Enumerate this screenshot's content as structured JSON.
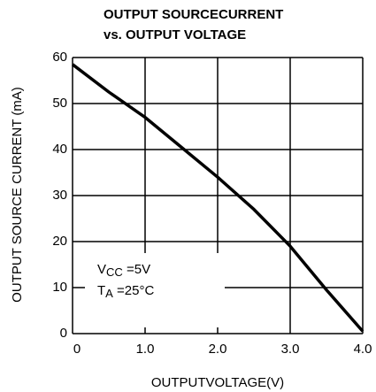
{
  "chart_data": {
    "type": "line",
    "title": [
      "OUTPUT SOURCECURRENT",
      "vs. OUTPUT VOLTAGE"
    ],
    "x_label": "OUTPUTVOLTAGE(V)",
    "y_label": "OUTPUT SOURCE CURRENT (mA)",
    "x": [
      0,
      0.5,
      1.0,
      1.5,
      2.0,
      2.5,
      3.0,
      3.5,
      4.0
    ],
    "series": [
      {
        "name": "Output source current",
        "color": "#000000",
        "values": [
          58.5,
          52.5,
          47,
          40.5,
          34,
          27,
          19,
          9.5,
          0.5
        ]
      }
    ],
    "xlim": [
      0,
      4
    ],
    "ylim": [
      0,
      60
    ],
    "xticks": [
      0,
      {
        "value": 1,
        "label": "1.0"
      },
      {
        "value": 2,
        "label": "2.0"
      },
      {
        "value": 3,
        "label": "3.0"
      },
      {
        "value": 4,
        "label": "4.0"
      }
    ],
    "yticks": [
      0,
      10,
      20,
      30,
      40,
      50,
      60
    ],
    "grid": true,
    "annotations": [
      {
        "main": "V",
        "sub": "CC",
        "rest": " =5V"
      },
      {
        "main": "T",
        "sub": "A",
        "rest": " =25°C"
      }
    ]
  }
}
